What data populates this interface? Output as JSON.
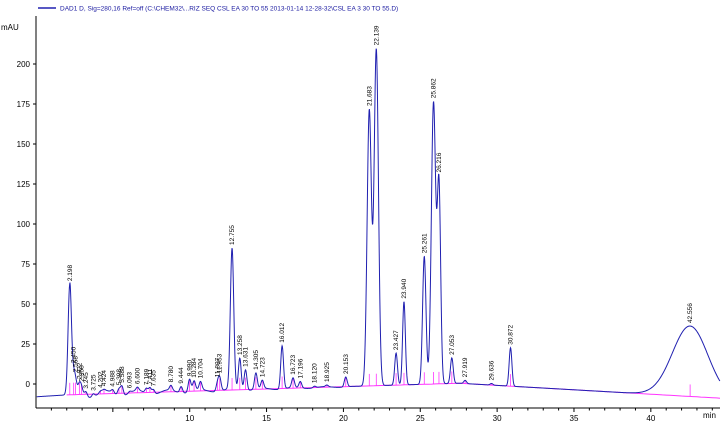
{
  "chart_data": {
    "type": "line",
    "legend": "DAD1 D, Sig=280,16 Ref=off (C:\\CHEM32\\...RIZ SEQ CSL EA 30 TO 55 2013-01-14 12-28-32\\CSL EA 3 30 TO 55.D)",
    "ylabel": "mAU",
    "xlabel": "min",
    "xlim": [
      0,
      44.5
    ],
    "ylim": [
      -15,
      230
    ],
    "x_ticks": [
      10,
      15,
      20,
      25,
      30,
      35,
      40
    ],
    "y_ticks": [
      0,
      25,
      50,
      75,
      100,
      125,
      150,
      175,
      200
    ],
    "colors": {
      "signal": "#2020b0",
      "baseline": "#ff33ff",
      "axes": "#000000"
    },
    "peaks": [
      {
        "label": "2.198",
        "rt": 2.198,
        "height": 69
      },
      {
        "label": "2.450",
        "rt": 2.45,
        "height": 8
      },
      {
        "label": "2.568",
        "rt": 2.568,
        "height": 6
      },
      {
        "label": "2.822",
        "rt": 2.822,
        "height": 5
      },
      {
        "label": "2.958",
        "rt": 2.958,
        "height": 4
      },
      {
        "label": "3.245",
        "rt": 3.245,
        "height": 3
      },
      {
        "label": "3.725",
        "rt": 3.725,
        "height": 2
      },
      {
        "label": "4.202",
        "rt": 4.202,
        "height": 1
      },
      {
        "label": "4.424",
        "rt": 4.424,
        "height": 1
      },
      {
        "label": "4.988",
        "rt": 4.988,
        "height": 2
      },
      {
        "label": "5.398",
        "rt": 5.398,
        "height": 4
      },
      {
        "label": "5.588",
        "rt": 5.588,
        "height": 6
      },
      {
        "label": "6.093",
        "rt": 6.093,
        "height": 1
      },
      {
        "label": "6.600",
        "rt": 6.6,
        "height": 2
      },
      {
        "label": "7.189",
        "rt": 7.189,
        "height": 3
      },
      {
        "label": "7.411",
        "rt": 7.411,
        "height": 4
      },
      {
        "label": "7.635",
        "rt": 7.635,
        "height": 3
      },
      {
        "label": "8.780",
        "rt": 8.78,
        "height": 3
      },
      {
        "label": "9.444",
        "rt": 9.444,
        "height": 4
      },
      {
        "label": "9.990",
        "rt": 9.99,
        "height": 8
      },
      {
        "label": "10.284",
        "rt": 10.284,
        "height": 6
      },
      {
        "label": "10.704",
        "rt": 10.704,
        "height": 5
      },
      {
        "label": "11.807",
        "rt": 11.807,
        "height": 5
      },
      {
        "label": "11.953",
        "rt": 11.953,
        "height": 8
      },
      {
        "label": "12.755",
        "rt": 12.755,
        "height": 88
      },
      {
        "label": "13.258",
        "rt": 13.258,
        "height": 20
      },
      {
        "label": "13.631",
        "rt": 13.631,
        "height": 13
      },
      {
        "label": "14.305",
        "rt": 14.305,
        "height": 10
      },
      {
        "label": "14.723",
        "rt": 14.723,
        "height": 5
      },
      {
        "label": "16.012",
        "rt": 16.012,
        "height": 27
      },
      {
        "label": "16.723",
        "rt": 16.723,
        "height": 6
      },
      {
        "label": "17.196",
        "rt": 17.196,
        "height": 4
      },
      {
        "label": "18.120",
        "rt": 18.12,
        "height": 1
      },
      {
        "label": "18.925",
        "rt": 18.925,
        "height": 1
      },
      {
        "label": "20.153",
        "rt": 20.153,
        "height": 6
      },
      {
        "label": "21.683",
        "rt": 21.683,
        "height": 172
      },
      {
        "label": "22.139",
        "rt": 22.139,
        "height": 210
      },
      {
        "label": "23.427",
        "rt": 23.427,
        "height": 20
      },
      {
        "label": "23.940",
        "rt": 23.94,
        "height": 52
      },
      {
        "label": "25.261",
        "rt": 25.261,
        "height": 80
      },
      {
        "label": "25.862",
        "rt": 25.862,
        "height": 176
      },
      {
        "label": "26.216",
        "rt": 26.216,
        "height": 123
      },
      {
        "label": "27.053",
        "rt": 27.053,
        "height": 16
      },
      {
        "label": "27.919",
        "rt": 27.919,
        "height": 2
      },
      {
        "label": "29.636",
        "rt": 29.636,
        "height": 1
      },
      {
        "label": "30.872",
        "rt": 30.872,
        "height": 24
      },
      {
        "label": "42.556",
        "rt": 42.556,
        "height": 44
      }
    ]
  }
}
